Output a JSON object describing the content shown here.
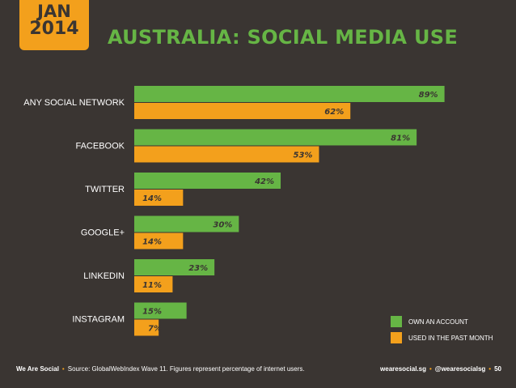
{
  "header": {
    "month": "JAN",
    "year": "2014",
    "title": "AUSTRALIA: SOCIAL MEDIA USE"
  },
  "colors": {
    "background": "#3a3532",
    "green": "#66b545",
    "orange": "#f3a01c"
  },
  "chart_data": {
    "type": "bar",
    "orientation": "horizontal",
    "title": "AUSTRALIA: SOCIAL MEDIA USE",
    "categories": [
      "ANY SOCIAL NETWORK",
      "FACEBOOK",
      "TWITTER",
      "GOOGLE+",
      "LINKEDIN",
      "INSTAGRAM"
    ],
    "series": [
      {
        "name": "OWN AN ACCOUNT",
        "color": "#66b545",
        "values": [
          89,
          81,
          42,
          30,
          23,
          15
        ],
        "labels": [
          "89%",
          "81%",
          "42%",
          "30%",
          "23%",
          "15%"
        ]
      },
      {
        "name": "USED IN THE PAST MONTH",
        "color": "#f3a01c",
        "values": [
          62,
          53,
          14,
          14,
          11,
          7
        ],
        "labels": [
          "62%",
          "53%",
          "14%",
          "14%",
          "11%",
          "7%"
        ]
      }
    ],
    "xlim": [
      0,
      100
    ],
    "grid": false,
    "legend_position": "bottom-right"
  },
  "footer": {
    "brand": "We Are Social",
    "source": "Source: GlobalWebIndex Wave 11. Figures represent percentage of internet users.",
    "website": "wearesocial.sg",
    "handle": "@wearesocialsg",
    "page": "50"
  }
}
